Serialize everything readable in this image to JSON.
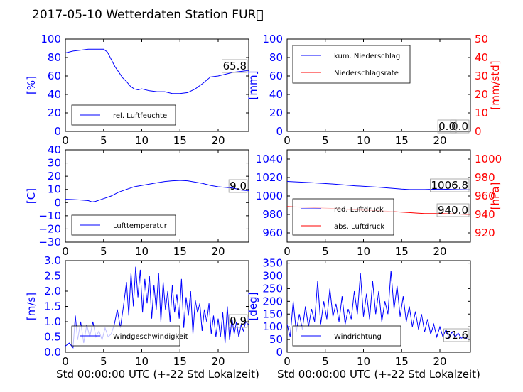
{
  "title": "2017-05-10 Wetterdaten Station FUR\u0000",
  "xlabel": "Std 00:00:00 UTC (+-22 Std Lokalzeit)",
  "chart_data": [
    {
      "type": "line",
      "id": "humidity",
      "ylabel": "[%]",
      "xlim": [
        0,
        24
      ],
      "ylim": [
        0,
        100
      ],
      "xticks": [
        "0",
        "5",
        "10",
        "15",
        "20"
      ],
      "yticks": [
        "0",
        "20",
        "40",
        "60",
        "80",
        "100"
      ],
      "value_label": "65.8",
      "series": [
        {
          "name": "rel. Luftfeuchte",
          "color": "#0000ff",
          "x": [
            0,
            1,
            2,
            3,
            4,
            5,
            5.5,
            6,
            6.5,
            7,
            7.5,
            8,
            8.5,
            9,
            9.5,
            10,
            11,
            12,
            13,
            14,
            15,
            16,
            17,
            18,
            19,
            20,
            21,
            22,
            23,
            24
          ],
          "y": [
            85,
            87,
            88,
            89,
            89,
            89,
            86,
            78,
            70,
            64,
            58,
            54,
            49,
            46,
            45,
            46,
            44,
            43,
            43,
            41,
            41,
            42,
            46,
            52,
            59,
            60,
            62,
            64,
            65,
            66
          ]
        }
      ]
    },
    {
      "type": "line",
      "id": "precipitation",
      "ylabel": "[mm]",
      "ylabel_right": "[mm/std]",
      "xlim": [
        0,
        24
      ],
      "ylim": [
        0,
        100
      ],
      "ylim_right": [
        0,
        50
      ],
      "xticks": [
        "0",
        "5",
        "10",
        "15",
        "20"
      ],
      "yticks": [
        "0",
        "20",
        "40",
        "60",
        "80",
        "100"
      ],
      "yticks_right": [
        "0",
        "10",
        "20",
        "30",
        "40",
        "50"
      ],
      "value_label": "0.0",
      "value_label_right": "0.0",
      "series": [
        {
          "name": "kum. Niederschlag",
          "color": "#0000ff",
          "x": [
            0,
            24
          ],
          "y": [
            0,
            0
          ]
        },
        {
          "name": "Niederschlagsrate",
          "color": "#ff0000",
          "x": [
            0,
            24
          ],
          "y": [
            0,
            0
          ]
        }
      ]
    },
    {
      "type": "line",
      "id": "temperature",
      "ylabel": "[C]",
      "xlim": [
        0,
        24
      ],
      "ylim": [
        -30,
        40
      ],
      "xticks": [
        "0",
        "5",
        "10",
        "15",
        "20"
      ],
      "yticks": [
        "−30",
        "−20",
        "−10",
        "0",
        "10",
        "20",
        "30",
        "40"
      ],
      "value_label": "9.0",
      "series": [
        {
          "name": "Lufttemperatur",
          "color": "#0000ff",
          "x": [
            0,
            1,
            2,
            3,
            3.5,
            4,
            5,
            6,
            7,
            8,
            9,
            10,
            11,
            12,
            13,
            14,
            15,
            16,
            17,
            18,
            19,
            20,
            21,
            22,
            23,
            24
          ],
          "y": [
            2.5,
            2.3,
            2,
            1.5,
            0.5,
            1,
            3,
            5,
            8,
            10,
            12,
            13,
            14,
            15,
            16,
            16.5,
            16.8,
            16.5,
            15.5,
            14.5,
            13,
            12,
            11.5,
            11,
            9.5,
            9
          ]
        }
      ]
    },
    {
      "type": "line",
      "id": "pressure",
      "ylabel_right": "[hPa]",
      "xlim": [
        0,
        24
      ],
      "ylim": [
        950,
        1050
      ],
      "ylim_right": [
        910,
        1010
      ],
      "xticks": [
        "0",
        "5",
        "10",
        "15",
        "20"
      ],
      "yticks": [
        "960",
        "980",
        "1000",
        "1020",
        "1040"
      ],
      "yticks_right": [
        "920",
        "940",
        "960",
        "980",
        "1000"
      ],
      "value_label": "1006.8",
      "value_label_right": "940.0",
      "series": [
        {
          "name": "red. Luftdruck",
          "color": "#0000ff",
          "x": [
            0,
            3,
            6,
            9,
            12,
            15,
            16,
            17,
            18,
            20,
            22,
            24
          ],
          "y": [
            1015.8,
            1014.5,
            1013,
            1011,
            1009.5,
            1007.5,
            1007,
            1007,
            1007,
            1007.5,
            1007,
            1006.8
          ]
        },
        {
          "name": "abs. Luftdruck",
          "color": "#ff0000",
          "axis": "right",
          "x": [
            0,
            3,
            6,
            9,
            12,
            15,
            16,
            17,
            18,
            20,
            22,
            24
          ],
          "y": [
            948.5,
            947.5,
            946.5,
            945,
            944,
            942.5,
            942,
            941.5,
            941,
            941,
            940.5,
            940
          ]
        }
      ]
    },
    {
      "type": "line",
      "id": "windspeed",
      "ylabel": "[m/s]",
      "xlim": [
        0,
        24
      ],
      "ylim": [
        0,
        3
      ],
      "xticks": [
        "0",
        "5",
        "10",
        "15",
        "20"
      ],
      "yticks": [
        "0.0",
        "0.5",
        "1.0",
        "1.5",
        "2.0",
        "2.5",
        "3.0"
      ],
      "value_label": "0.9",
      "series": [
        {
          "name": "Windgeschwindigkeit",
          "color": "#0000ff",
          "x": [
            0,
            0.5,
            1,
            1.3,
            1.6,
            2,
            2.4,
            2.8,
            3.2,
            3.6,
            4,
            4.4,
            4.8,
            5.2,
            5.6,
            6,
            6.4,
            6.8,
            7.2,
            7.6,
            8,
            8.3,
            8.6,
            8.9,
            9.2,
            9.5,
            9.8,
            10.1,
            10.4,
            10.7,
            11,
            11.3,
            11.6,
            11.9,
            12.2,
            12.5,
            12.8,
            13.1,
            13.4,
            13.7,
            14,
            14.3,
            14.6,
            14.9,
            15.2,
            15.5,
            15.8,
            16.1,
            16.4,
            16.7,
            17,
            17.3,
            17.6,
            17.9,
            18.2,
            18.5,
            18.8,
            19.1,
            19.4,
            19.7,
            20,
            20.3,
            20.6,
            20.9,
            21.2,
            21.5,
            21.8,
            22.1,
            22.4,
            22.7,
            23,
            23.3,
            23.6,
            24
          ],
          "y": [
            0.2,
            0.3,
            0.15,
            1.2,
            0.4,
            1.0,
            0.3,
            0.9,
            0.5,
            1.0,
            0.5,
            0.7,
            0.4,
            0.8,
            0.5,
            0.6,
            0.9,
            1.4,
            0.8,
            1.5,
            2.3,
            1.2,
            2.6,
            1.5,
            2.8,
            1.8,
            2.7,
            1.3,
            2.4,
            1.6,
            2.5,
            1.1,
            2.2,
            1.4,
            2.6,
            1.0,
            2.3,
            1.4,
            2.0,
            1.0,
            2.2,
            1.3,
            1.9,
            1.1,
            2.4,
            0.8,
            1.8,
            1.2,
            2.0,
            0.6,
            1.7,
            1.3,
            1.6,
            0.7,
            1.4,
            1.0,
            1.6,
            0.6,
            1.2,
            0.5,
            1.1,
            0.5,
            1.3,
            0.3,
            1.5,
            0.4,
            1.1,
            0.6,
            1.0,
            0.5,
            0.9,
            0.7,
            1.0,
            0.9
          ]
        }
      ]
    },
    {
      "type": "line",
      "id": "winddirection",
      "ylabel": "[deg]",
      "xlim": [
        0,
        24
      ],
      "ylim": [
        0,
        360
      ],
      "xticks": [
        "0",
        "5",
        "10",
        "15",
        "20"
      ],
      "yticks": [
        "0",
        "50",
        "100",
        "150",
        "200",
        "250",
        "300",
        "350"
      ],
      "value_label": "51.6",
      "series": [
        {
          "name": "Windrichtung",
          "color": "#0000ff",
          "x": [
            0,
            0.4,
            0.8,
            1.2,
            1.6,
            2,
            2.4,
            2.8,
            3.2,
            3.6,
            4,
            4.4,
            4.8,
            5.2,
            5.6,
            6,
            6.4,
            6.8,
            7.2,
            7.6,
            8,
            8.4,
            8.8,
            9.2,
            9.6,
            10,
            10.4,
            10.8,
            11.2,
            11.6,
            12,
            12.4,
            12.8,
            13.2,
            13.6,
            14,
            14.4,
            14.8,
            15.2,
            15.6,
            16,
            16.4,
            16.8,
            17.2,
            17.6,
            18,
            18.4,
            18.8,
            19.2,
            19.6,
            20,
            20.4,
            20.8,
            21.2,
            21.6,
            22,
            22.4,
            22.8,
            23.2,
            23.6,
            24
          ],
          "y": [
            110,
            60,
            200,
            80,
            150,
            90,
            180,
            100,
            170,
            120,
            280,
            110,
            200,
            130,
            250,
            140,
            190,
            120,
            220,
            110,
            170,
            130,
            240,
            150,
            310,
            140,
            230,
            130,
            280,
            150,
            240,
            120,
            200,
            150,
            320,
            170,
            260,
            140,
            220,
            120,
            180,
            100,
            160,
            90,
            150,
            80,
            130,
            70,
            110,
            60,
            100,
            60,
            90,
            55,
            80,
            60,
            75,
            55,
            60,
            52,
            51.6
          ]
        }
      ]
    }
  ]
}
